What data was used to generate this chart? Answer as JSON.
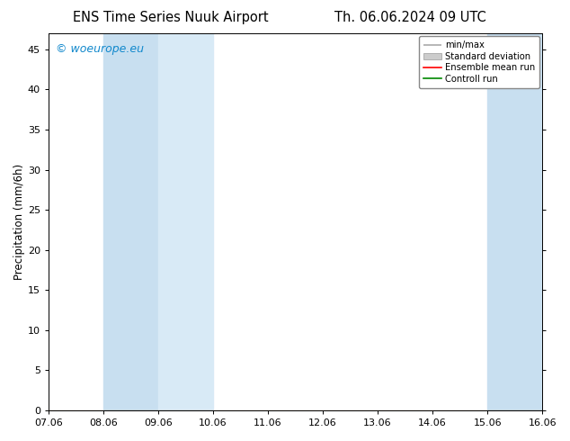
{
  "title_left": "ENS Time Series Nuuk Airport",
  "title_right": "Th. 06.06.2024 09 UTC",
  "ylabel": "Precipitation (mm/6h)",
  "watermark": "© woeurope.eu",
  "ylim": [
    0,
    47
  ],
  "yticks": [
    0,
    5,
    10,
    15,
    20,
    25,
    30,
    35,
    40,
    45
  ],
  "xtick_labels": [
    "07.06",
    "08.06",
    "09.06",
    "10.06",
    "11.06",
    "12.06",
    "13.06",
    "14.06",
    "15.06",
    "16.06"
  ],
  "n_xticks": 10,
  "shaded_regions": [
    {
      "xmin": 1,
      "xmax": 2,
      "color": "#c8dff0"
    },
    {
      "xmin": 2,
      "xmax": 3,
      "color": "#d8eaf6"
    },
    {
      "xmin": 8,
      "xmax": 9,
      "color": "#c8dff0"
    },
    {
      "xmin": 9,
      "xmax": 10,
      "color": "#d8eaf6"
    }
  ],
  "legend_labels": [
    "min/max",
    "Standard deviation",
    "Ensemble mean run",
    "Controll run"
  ],
  "legend_colors_minmax": "#aaaaaa",
  "legend_color_stddev": "#cccccc",
  "legend_color_mean": "#ff0000",
  "legend_color_ctrl": "#008800",
  "background_color": "#ffffff",
  "title_fontsize": 10.5,
  "axis_fontsize": 8.5,
  "tick_fontsize": 8,
  "watermark_color": "#1188cc",
  "watermark_fontsize": 9
}
